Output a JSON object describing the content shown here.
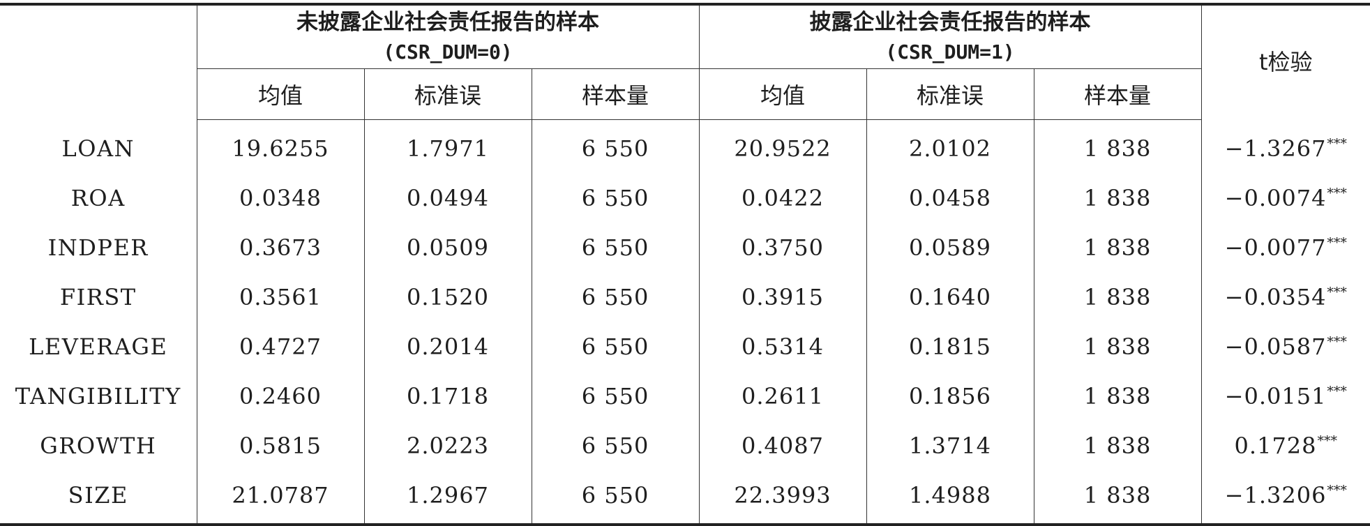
{
  "table": {
    "group_no_csr": {
      "title": "未披露企业社会责任报告的样本",
      "sub": "(CSR_DUM=0)"
    },
    "group_csr": {
      "title": "披露企业社会责任报告的样本",
      "sub": "(CSR_DUM=1)"
    },
    "ttest_header": "t检验",
    "subheaders": [
      "均值",
      "标准误",
      "样本量",
      "均值",
      "标准误",
      "样本量"
    ],
    "rows": [
      {
        "var": "LOAN",
        "m0": "19.6255",
        "se0": "1.7971",
        "n0": "6 550",
        "m1": "20.9522",
        "se1": "2.0102",
        "n1": "1 838",
        "t": "−1.3267",
        "sig": "***"
      },
      {
        "var": "ROA",
        "m0": "0.0348",
        "se0": "0.0494",
        "n0": "6 550",
        "m1": "0.0422",
        "se1": "0.0458",
        "n1": "1 838",
        "t": "−0.0074",
        "sig": "***"
      },
      {
        "var": "INDPER",
        "m0": "0.3673",
        "se0": "0.0509",
        "n0": "6 550",
        "m1": "0.3750",
        "se1": "0.0589",
        "n1": "1 838",
        "t": "−0.0077",
        "sig": "***"
      },
      {
        "var": "FIRST",
        "m0": "0.3561",
        "se0": "0.1520",
        "n0": "6 550",
        "m1": "0.3915",
        "se1": "0.1640",
        "n1": "1 838",
        "t": "−0.0354",
        "sig": "***"
      },
      {
        "var": "LEVERAGE",
        "m0": "0.4727",
        "se0": "0.2014",
        "n0": "6 550",
        "m1": "0.5314",
        "se1": "0.1815",
        "n1": "1 838",
        "t": "−0.0587",
        "sig": "***"
      },
      {
        "var": "TANGIBILITY",
        "m0": "0.2460",
        "se0": "0.1718",
        "n0": "6 550",
        "m1": "0.2611",
        "se1": "0.1856",
        "n1": "1 838",
        "t": "−0.0151",
        "sig": "***"
      },
      {
        "var": "GROWTH",
        "m0": "0.5815",
        "se0": "2.0223",
        "n0": "6 550",
        "m1": "0.4087",
        "se1": "1.3714",
        "n1": "1 838",
        "t": "0.1728",
        "sig": "***"
      },
      {
        "var": "SIZE",
        "m0": "21.0787",
        "se0": "1.2967",
        "n0": "6 550",
        "m1": "22.3993",
        "se1": "1.4988",
        "n1": "1 838",
        "t": "−1.3206",
        "sig": "***"
      }
    ]
  }
}
